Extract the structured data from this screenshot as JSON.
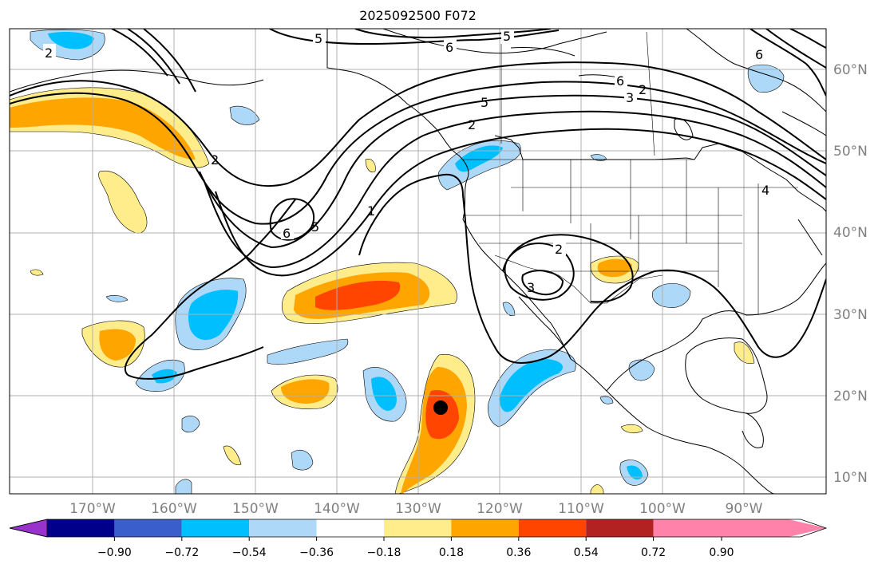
{
  "map": {
    "title": "2025092500 F072",
    "lat_labels": [
      "60°N",
      "50°N",
      "40°N",
      "30°N",
      "20°N",
      "10°N"
    ],
    "lon_labels": [
      "170°W",
      "160°W",
      "150°W",
      "140°W",
      "130°W",
      "120°W",
      "110°W",
      "100°W",
      "90°W"
    ],
    "contour_labels": [
      "2",
      "5",
      "6",
      "5",
      "6",
      "6",
      "3",
      "2",
      "5",
      "2",
      "1",
      "2",
      "5",
      "6",
      "4",
      "2",
      "3"
    ],
    "storm_marker": "black dot"
  },
  "colorbar": {
    "ticks": [
      "−0.90",
      "−0.72",
      "−0.54",
      "−0.36",
      "−0.18",
      "0.18",
      "0.36",
      "0.54",
      "0.72",
      "0.90"
    ],
    "colors": [
      "#9932cc",
      "#00008b",
      "#3a5fcd",
      "#00bfff",
      "#add8f8",
      "#ffffff",
      "#ffec8b",
      "#ffa500",
      "#ff4500",
      "#b22222",
      "#ff82ab"
    ]
  }
}
